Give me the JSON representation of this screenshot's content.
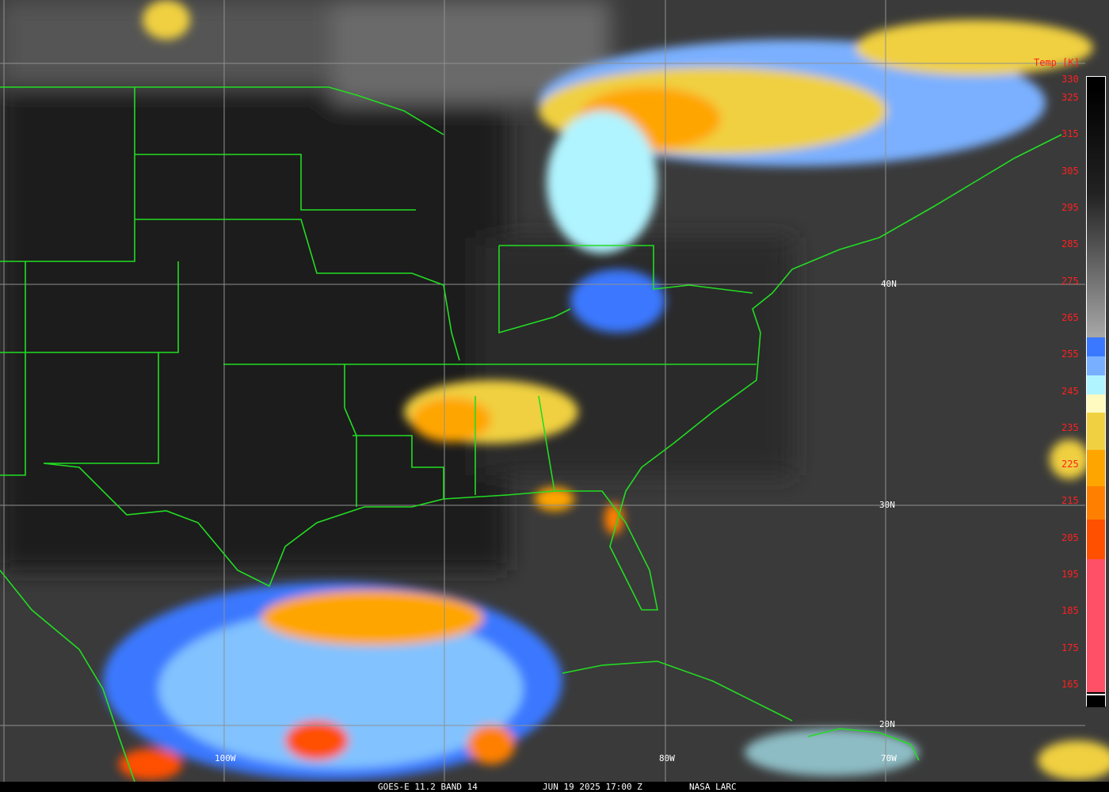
{
  "product": {
    "satellite": "GOES-E 11.2 BAND 14",
    "datetime": "JUN 19 2025 17:00 Z",
    "credit": "NASA LARC"
  },
  "grid_labels": {
    "lat": [
      "40N",
      "30N",
      "20N"
    ],
    "lon": [
      "100W",
      "80W",
      "70W"
    ]
  },
  "colorbar": {
    "units": "Temp [K]",
    "ticks": [
      "330",
      "325",
      "315",
      "305",
      "295",
      "285",
      "275",
      "265",
      "255",
      "245",
      "235",
      "225",
      "215",
      "205",
      "195",
      "185",
      "175",
      "165"
    ],
    "colors": {
      "warm_top": "#000000",
      "gray_bottom": "#a8a8a8",
      "blue": "#3a78ff",
      "light_blue": "#78b0ff",
      "cyan": "#b0f4ff",
      "pale_yellow": "#fffac0",
      "yellow": "#f0d040",
      "orange": "#ffa500",
      "dark_orange": "#ff8000",
      "red_orange": "#ff5000",
      "pink": "#ff5068",
      "coldest": "#000000"
    }
  },
  "map_colors": {
    "borders": "#22dd22",
    "grid": "#909090"
  }
}
